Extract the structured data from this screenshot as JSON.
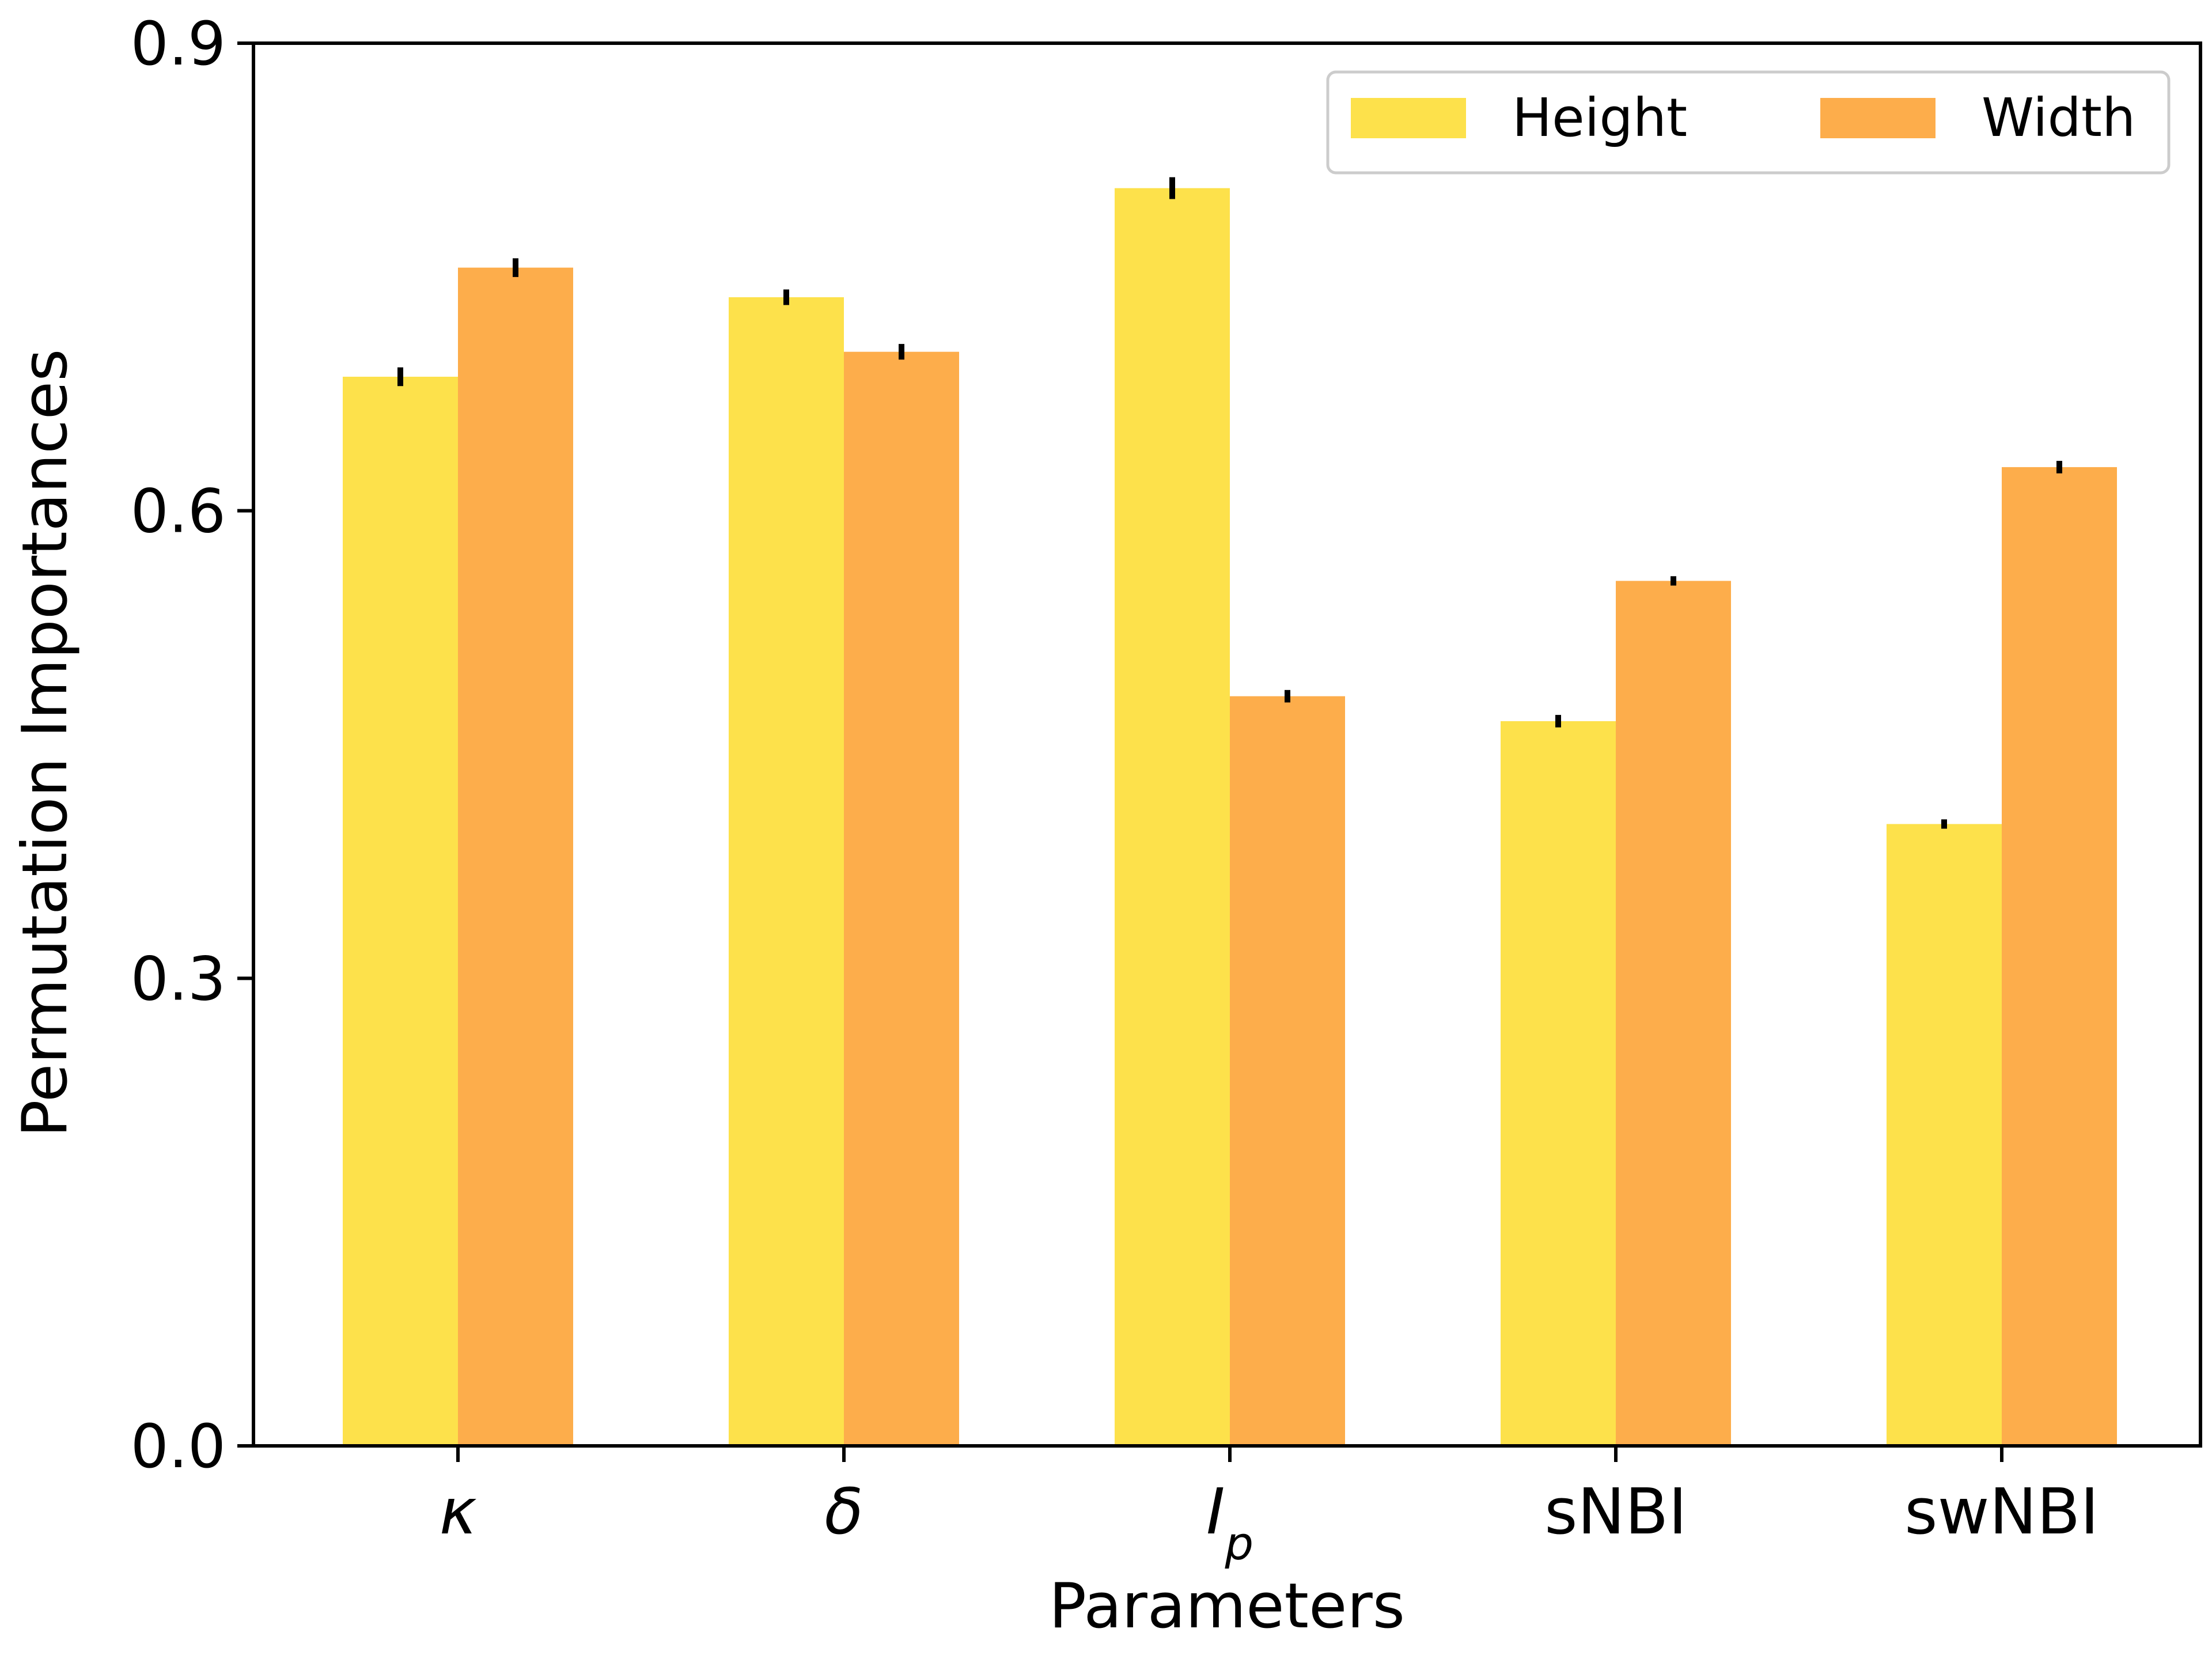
{
  "chart_data": {
    "type": "bar",
    "title": "",
    "xlabel": "Parameters",
    "ylabel": "Permutation Importances",
    "ylim": [
      0,
      0.9
    ],
    "yticks": [
      "0.0",
      "0.3",
      "0.6",
      "0.9"
    ],
    "categories": [
      "κ",
      "δ",
      "I_p",
      "sNBI",
      "swNBI"
    ],
    "series": [
      {
        "name": "Height",
        "color": "#fde14b",
        "values": [
          0.686,
          0.737,
          0.807,
          0.465,
          0.399
        ],
        "errors": [
          0.006,
          0.005,
          0.007,
          0.004,
          0.003
        ]
      },
      {
        "name": "Width",
        "color": "#fdad4b",
        "values": [
          0.756,
          0.702,
          0.481,
          0.555,
          0.628
        ],
        "errors": [
          0.006,
          0.005,
          0.004,
          0.003,
          0.004
        ]
      }
    ],
    "error_bar_color": "#000000",
    "legend": {
      "position": "top-right"
    },
    "grid": false
  }
}
